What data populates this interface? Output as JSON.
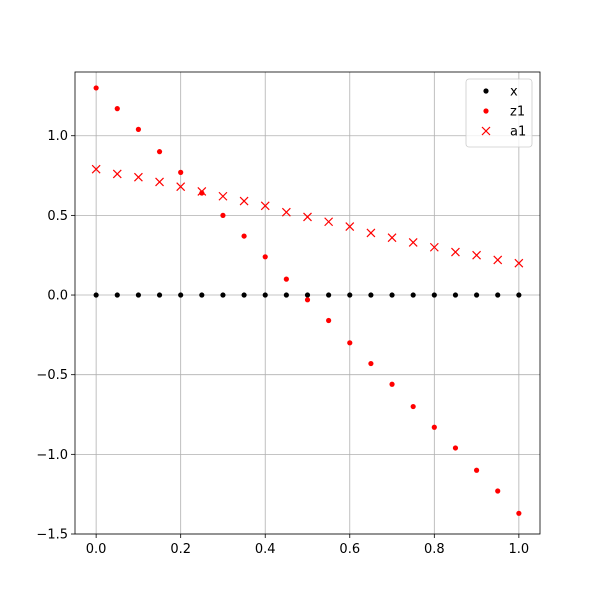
{
  "chart_data": {
    "type": "scatter",
    "title": "",
    "xlabel": "",
    "ylabel": "",
    "xlim": [
      -0.05,
      1.05
    ],
    "ylim": [
      -1.5,
      1.4
    ],
    "grid": true,
    "legend_position": "upper right",
    "x_ticks": [
      0.0,
      0.2,
      0.4,
      0.6,
      0.8,
      1.0
    ],
    "x_tick_labels": [
      "0.0",
      "0.2",
      "0.4",
      "0.6",
      "0.8",
      "1.0"
    ],
    "y_ticks": [
      -1.5,
      -1.0,
      -0.5,
      0.0,
      0.5,
      1.0
    ],
    "y_tick_labels": [
      "−1.5",
      "−1.0",
      "−0.5",
      "0.0",
      "0.5",
      "1.0"
    ],
    "x": [
      0.0,
      0.05,
      0.1,
      0.15,
      0.2,
      0.25,
      0.3,
      0.35,
      0.4,
      0.45,
      0.5,
      0.55,
      0.6,
      0.65,
      0.7,
      0.75,
      0.8,
      0.85,
      0.9,
      0.95,
      1.0
    ],
    "series": [
      {
        "name": "x",
        "marker": "dot",
        "color": "#000000",
        "values": [
          0,
          0,
          0,
          0,
          0,
          0,
          0,
          0,
          0,
          0,
          0,
          0,
          0,
          0,
          0,
          0,
          0,
          0,
          0,
          0,
          0
        ]
      },
      {
        "name": "z1",
        "marker": "dot",
        "color": "#ff0000",
        "values": [
          1.3,
          1.17,
          1.04,
          0.9,
          0.77,
          0.64,
          0.5,
          0.37,
          0.24,
          0.1,
          -0.03,
          -0.16,
          -0.3,
          -0.43,
          -0.56,
          -0.7,
          -0.83,
          -0.96,
          -1.1,
          -1.23,
          -1.37
        ]
      },
      {
        "name": "a1",
        "marker": "cross",
        "color": "#ff0000",
        "values": [
          0.79,
          0.76,
          0.74,
          0.71,
          0.68,
          0.65,
          0.62,
          0.59,
          0.56,
          0.52,
          0.49,
          0.46,
          0.43,
          0.39,
          0.36,
          0.33,
          0.3,
          0.27,
          0.25,
          0.22,
          0.2
        ]
      }
    ]
  }
}
